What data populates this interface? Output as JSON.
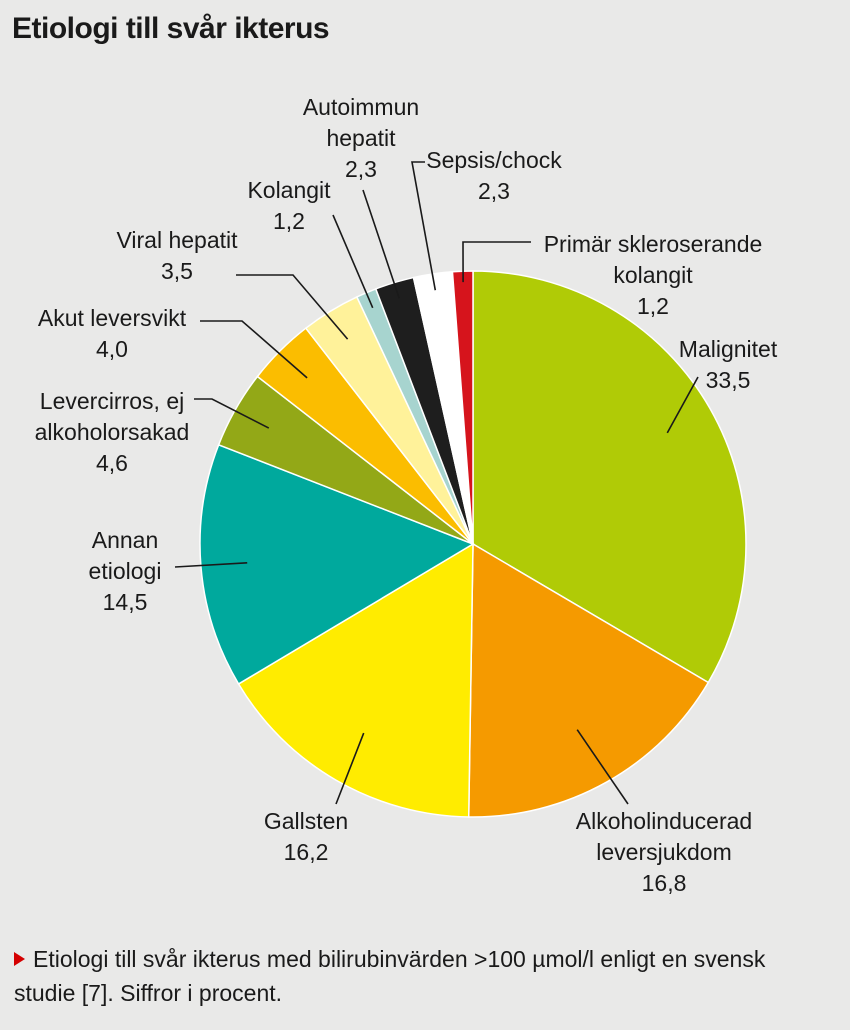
{
  "title": "Etiologi till svår ikterus",
  "caption": "Etiologi till svår ikterus med bilirubinvärden >100 µmol/l enligt en svensk studie [7]. Siffror i procent.",
  "chart_data": {
    "type": "pie",
    "title": "Etiologi till svår ikterus",
    "start": "12 o'clock, clockwise",
    "slices": [
      {
        "label": [
          "Malignitet"
        ],
        "value": 33.5,
        "display": "33,5",
        "color": "#b0cb06"
      },
      {
        "label": [
          "Alkoholinducerad",
          "leversjukdom"
        ],
        "value": 16.8,
        "display": "16,8",
        "color": "#f59a00"
      },
      {
        "label": [
          "Gallsten"
        ],
        "value": 16.2,
        "display": "16,2",
        "color": "#ffec00"
      },
      {
        "label": [
          "Annan",
          "etiologi"
        ],
        "value": 14.5,
        "display": "14,5",
        "color": "#00a99d"
      },
      {
        "label": [
          "Levercirros, ej",
          "alkoholorsakad"
        ],
        "value": 4.6,
        "display": "4,6",
        "color": "#93a817"
      },
      {
        "label": [
          "Akut leversvikt"
        ],
        "value": 4.0,
        "display": "4,0",
        "color": "#fbbd00"
      },
      {
        "label": [
          "Viral hepatit"
        ],
        "value": 3.5,
        "display": "3,5",
        "color": "#fff29a"
      },
      {
        "label": [
          "Kolangit"
        ],
        "value": 1.2,
        "display": "1,2",
        "color": "#a7d4cf"
      },
      {
        "label": [
          "Autoimmun",
          "hepatit"
        ],
        "value": 2.3,
        "display": "2,3",
        "color": "#1e1e1e"
      },
      {
        "label": [
          "Sepsis/chock"
        ],
        "value": 2.3,
        "display": "2,3",
        "color": "#ffffff"
      },
      {
        "label": [
          "Primär skleroserande",
          "kolangit"
        ],
        "value": 1.2,
        "display": "1,2",
        "color": "#d6141c"
      }
    ]
  }
}
